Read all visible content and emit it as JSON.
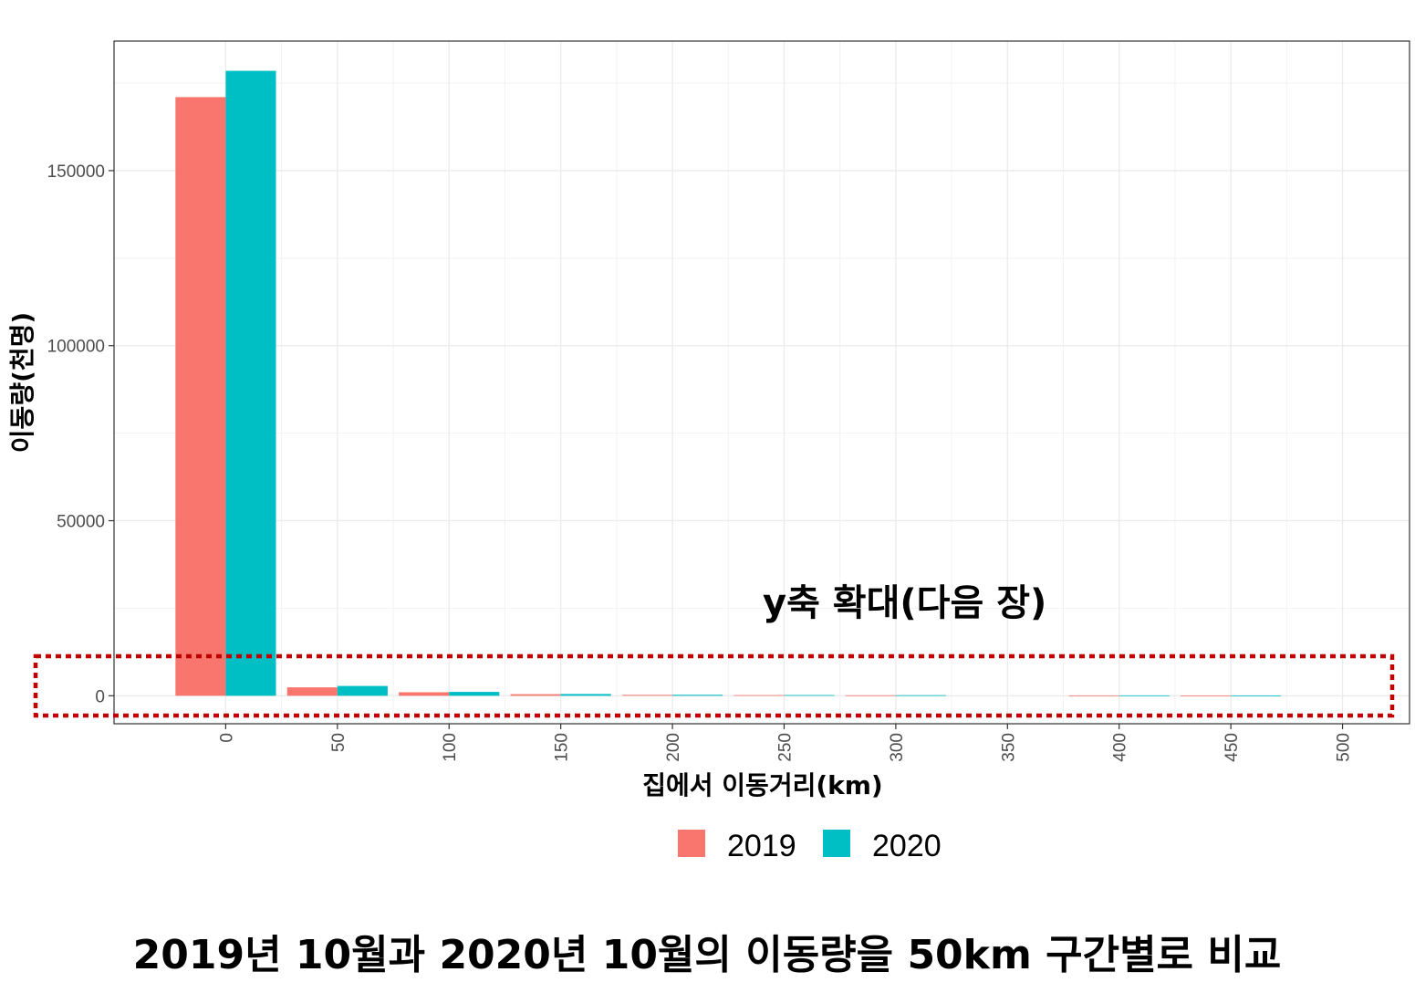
{
  "chart_data": {
    "type": "bar",
    "x": [
      0,
      50,
      100,
      150,
      200,
      250,
      300,
      400,
      450
    ],
    "x_ticks": [
      "0",
      "50",
      "100",
      "150",
      "200",
      "250",
      "300",
      "350",
      "400",
      "450",
      "500"
    ],
    "y_ticks": [
      "0",
      "50000",
      "100000",
      "150000"
    ],
    "xlim": [
      -50,
      530
    ],
    "ylim": [
      -8000,
      187000
    ],
    "xlabel": "집에서 이동거리(km)",
    "ylabel": "이동량(천명)",
    "series": [
      {
        "name": "2019",
        "color": "#F8766D",
        "values": [
          171000,
          2400,
          1000,
          450,
          250,
          180,
          130,
          90,
          70
        ]
      },
      {
        "name": "2020",
        "color": "#00BFC4",
        "values": [
          178500,
          2800,
          1100,
          500,
          280,
          200,
          150,
          100,
          80
        ]
      }
    ],
    "legend_position": "bottom",
    "grid": true,
    "annotation": "y축 확대(다음 장)",
    "highlight_box_color": "#C00000"
  },
  "caption": "2019년 10월과 2020년 10월의 이동량을 50km 구간별로 비교"
}
